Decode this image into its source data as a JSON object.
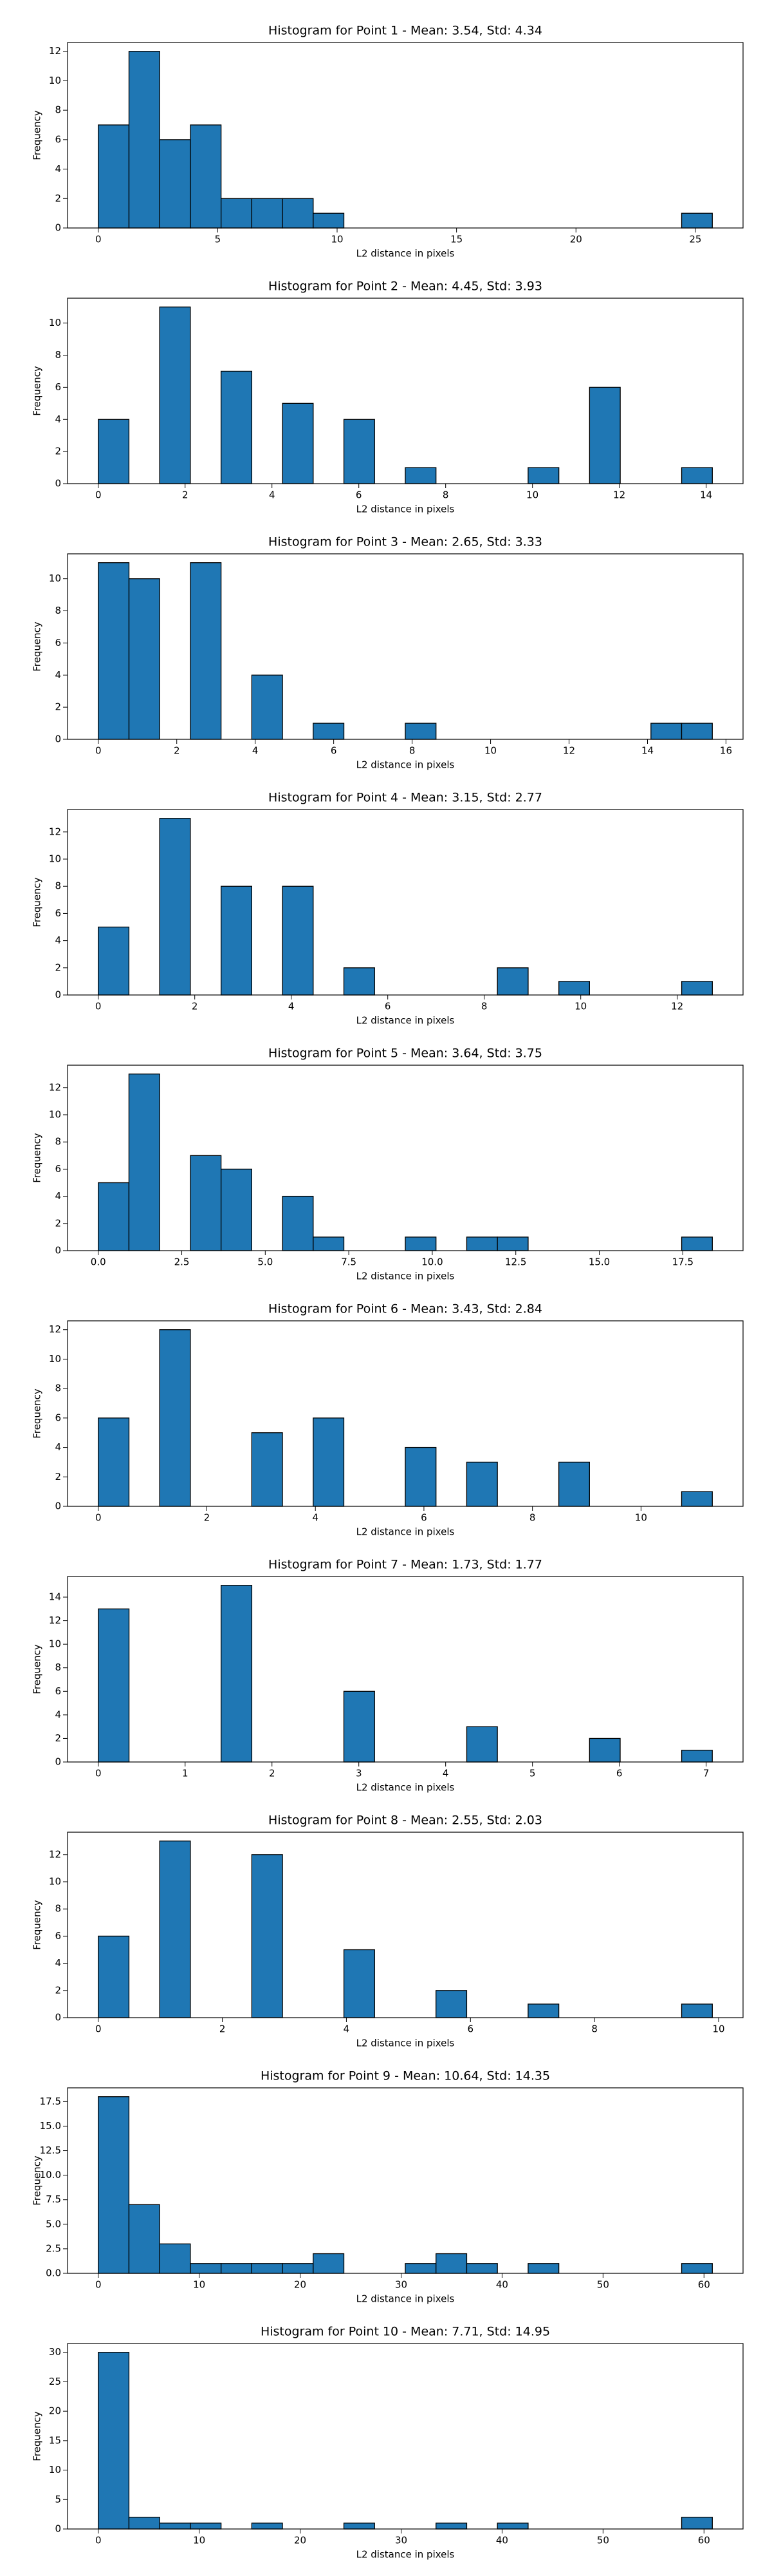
{
  "chart_data": [
    {
      "type": "histogram",
      "title": "Histogram for Point 1 - Mean: 3.54, Std: 4.34",
      "xlabel": "L2 distance in pixels",
      "ylabel": "Frequency",
      "color": "#1f77b4",
      "edgecolor": "#000000",
      "bins": [
        0,
        1.286,
        2.571,
        3.857,
        5.142,
        6.428,
        7.713,
        8.999,
        10.284,
        11.57,
        12.855,
        14.141,
        15.426,
        16.712,
        17.997,
        19.283,
        20.568,
        21.854,
        23.139,
        24.425,
        25.71
      ],
      "values": [
        7,
        12,
        6,
        7,
        2,
        2,
        2,
        1,
        0,
        0,
        0,
        0,
        0,
        0,
        0,
        0,
        0,
        0,
        0,
        1
      ],
      "xlim": [
        -1.286,
        26.996
      ],
      "xticks": [
        0,
        5,
        10,
        15,
        20,
        25
      ],
      "ylim": [
        0,
        12.6
      ],
      "yticks": [
        0,
        2,
        4,
        6,
        8,
        10,
        12
      ]
    },
    {
      "type": "histogram",
      "title": "Histogram for Point 2 - Mean: 4.45, Std: 3.93",
      "xlabel": "L2 distance in pixels",
      "ylabel": "Frequency",
      "color": "#1f77b4",
      "edgecolor": "#000000",
      "bins": [
        0,
        0.707,
        1.414,
        2.121,
        2.828,
        3.536,
        4.243,
        4.95,
        5.657,
        6.364,
        7.071,
        7.778,
        8.485,
        9.192,
        9.899,
        10.607,
        11.314,
        12.021,
        12.728,
        13.435,
        14.142
      ],
      "values": [
        4,
        0,
        11,
        0,
        7,
        0,
        5,
        0,
        4,
        0,
        1,
        0,
        0,
        0,
        1,
        0,
        6,
        0,
        0,
        1
      ],
      "xlim": [
        -0.707,
        14.849
      ],
      "xticks": [
        0,
        2,
        4,
        6,
        8,
        10,
        12,
        14
      ],
      "ylim": [
        0,
        11.55
      ],
      "yticks": [
        0,
        2,
        4,
        6,
        8,
        10
      ]
    },
    {
      "type": "histogram",
      "title": "Histogram for Point 3 - Mean: 2.65, Std: 3.33",
      "xlabel": "L2 distance in pixels",
      "ylabel": "Frequency",
      "color": "#1f77b4",
      "edgecolor": "#000000",
      "bins": [
        0,
        0.783,
        1.565,
        2.348,
        3.13,
        3.913,
        4.696,
        5.478,
        6.261,
        7.043,
        7.826,
        8.609,
        9.391,
        10.174,
        10.956,
        11.739,
        12.522,
        13.304,
        14.087,
        14.869,
        15.652
      ],
      "values": [
        11,
        10,
        0,
        11,
        0,
        4,
        0,
        1,
        0,
        0,
        1,
        0,
        0,
        0,
        0,
        0,
        0,
        0,
        1,
        1
      ],
      "xlim": [
        -0.783,
        16.435
      ],
      "xticks": [
        0,
        2,
        4,
        6,
        8,
        10,
        12,
        14,
        16
      ],
      "ylim": [
        0,
        11.55
      ],
      "yticks": [
        0,
        2,
        4,
        6,
        8,
        10
      ]
    },
    {
      "type": "histogram",
      "title": "Histogram for Point 4 - Mean: 3.15, Std: 2.77",
      "xlabel": "L2 distance in pixels",
      "ylabel": "Frequency",
      "color": "#1f77b4",
      "edgecolor": "#000000",
      "bins": [
        0,
        0.636,
        1.273,
        1.909,
        2.546,
        3.182,
        3.818,
        4.455,
        5.091,
        5.728,
        6.364,
        7,
        7.637,
        8.273,
        8.91,
        9.546,
        10.182,
        10.819,
        11.455,
        12.092,
        12.728
      ],
      "values": [
        5,
        0,
        13,
        0,
        8,
        0,
        8,
        0,
        2,
        0,
        0,
        0,
        0,
        2,
        0,
        1,
        0,
        0,
        0,
        1
      ],
      "xlim": [
        -0.636,
        13.364
      ],
      "xticks": [
        0,
        2,
        4,
        6,
        8,
        10,
        12
      ],
      "ylim": [
        0,
        13.65
      ],
      "yticks": [
        0,
        2,
        4,
        6,
        8,
        10,
        12
      ]
    },
    {
      "type": "histogram",
      "title": "Histogram for Point 5 - Mean: 3.64, Std: 3.75",
      "xlabel": "L2 distance in pixels",
      "ylabel": "Frequency",
      "color": "#1f77b4",
      "edgecolor": "#000000",
      "bins": [
        0,
        0.919,
        1.839,
        2.758,
        3.677,
        4.596,
        5.516,
        6.435,
        7.354,
        8.273,
        9.193,
        10.112,
        11.031,
        11.95,
        12.87,
        13.789,
        14.708,
        15.627,
        16.547,
        17.466,
        18.385
      ],
      "values": [
        5,
        13,
        0,
        7,
        6,
        0,
        4,
        1,
        0,
        0,
        1,
        0,
        1,
        1,
        0,
        0,
        0,
        0,
        0,
        1
      ],
      "xlim": [
        -0.919,
        19.304
      ],
      "xticks": [
        {
          "value": 0,
          "label": "0.0"
        },
        2.5,
        {
          "value": 5,
          "label": "5.0"
        },
        7.5,
        {
          "value": 10,
          "label": "10.0"
        },
        12.5,
        {
          "value": 15,
          "label": "15.0"
        },
        17.5
      ],
      "ylim": [
        0,
        13.65
      ],
      "yticks": [
        0,
        2,
        4,
        6,
        8,
        10,
        12
      ]
    },
    {
      "type": "histogram",
      "title": "Histogram for Point 6 - Mean: 3.43, Std: 2.84",
      "xlabel": "L2 distance in pixels",
      "ylabel": "Frequency",
      "color": "#1f77b4",
      "edgecolor": "#000000",
      "bins": [
        0,
        0.566,
        1.131,
        1.697,
        2.263,
        2.828,
        3.394,
        3.96,
        4.525,
        5.091,
        5.657,
        6.223,
        6.788,
        7.354,
        7.92,
        8.485,
        9.051,
        9.617,
        10.182,
        10.748,
        11.314
      ],
      "values": [
        6,
        0,
        12,
        0,
        0,
        5,
        0,
        6,
        0,
        0,
        4,
        0,
        3,
        0,
        0,
        3,
        0,
        0,
        0,
        1
      ],
      "xlim": [
        -0.566,
        11.88
      ],
      "xticks": [
        0,
        2,
        4,
        6,
        8,
        10
      ],
      "ylim": [
        0,
        12.6
      ],
      "yticks": [
        0,
        2,
        4,
        6,
        8,
        10,
        12
      ]
    },
    {
      "type": "histogram",
      "title": "Histogram for Point 7 - Mean: 1.73, Std: 1.77",
      "xlabel": "L2 distance in pixels",
      "ylabel": "Frequency",
      "color": "#1f77b4",
      "edgecolor": "#000000",
      "bins": [
        0,
        0.354,
        0.707,
        1.061,
        1.414,
        1.768,
        2.121,
        2.475,
        2.828,
        3.182,
        3.536,
        3.889,
        4.243,
        4.596,
        4.95,
        5.303,
        5.657,
        6.01,
        6.364,
        6.718,
        7.071
      ],
      "values": [
        13,
        0,
        0,
        0,
        15,
        0,
        0,
        0,
        6,
        0,
        0,
        0,
        3,
        0,
        0,
        0,
        2,
        0,
        0,
        1
      ],
      "xlim": [
        -0.354,
        7.425
      ],
      "xticks": [
        0,
        1,
        2,
        3,
        4,
        5,
        6,
        7
      ],
      "ylim": [
        0,
        15.75
      ],
      "yticks": [
        0,
        2,
        4,
        6,
        8,
        10,
        12,
        14
      ]
    },
    {
      "type": "histogram",
      "title": "Histogram for Point 8 - Mean: 2.55, Std: 2.03",
      "xlabel": "L2 distance in pixels",
      "ylabel": "Frequency",
      "color": "#1f77b4",
      "edgecolor": "#000000",
      "bins": [
        0,
        0.495,
        0.99,
        1.485,
        1.98,
        2.475,
        2.97,
        3.465,
        3.96,
        4.455,
        4.95,
        5.444,
        5.939,
        6.434,
        6.929,
        7.424,
        7.919,
        8.414,
        8.909,
        9.404,
        9.899
      ],
      "values": [
        6,
        0,
        13,
        0,
        0,
        12,
        0,
        0,
        5,
        0,
        0,
        2,
        0,
        0,
        1,
        0,
        0,
        0,
        0,
        1
      ],
      "xlim": [
        -0.495,
        10.394
      ],
      "xticks": [
        0,
        2,
        4,
        6,
        8,
        10
      ],
      "ylim": [
        0,
        13.65
      ],
      "yticks": [
        0,
        2,
        4,
        6,
        8,
        10,
        12
      ]
    },
    {
      "type": "histogram",
      "title": "Histogram for Point 9 - Mean: 10.64, Std: 14.35",
      "xlabel": "L2 distance in pixels",
      "ylabel": "Frequency",
      "color": "#1f77b4",
      "edgecolor": "#000000",
      "bins": [
        0,
        3.041,
        6.083,
        9.124,
        12.166,
        15.207,
        18.248,
        21.29,
        24.331,
        27.373,
        30.414,
        33.455,
        36.497,
        39.538,
        42.58,
        45.621,
        48.662,
        51.704,
        54.745,
        57.787,
        60.828
      ],
      "values": [
        18,
        7,
        3,
        1,
        1,
        1,
        1,
        2,
        0,
        0,
        1,
        2,
        1,
        0,
        1,
        0,
        0,
        0,
        0,
        1
      ],
      "xlim": [
        -3.041,
        63.869
      ],
      "xticks": [
        0,
        10,
        20,
        30,
        40,
        50,
        60
      ],
      "ylim": [
        0,
        18.9
      ],
      "yticks": [
        {
          "value": 0,
          "label": "0.0"
        },
        2.5,
        {
          "value": 5,
          "label": "5.0"
        },
        7.5,
        {
          "value": 10,
          "label": "10.0"
        },
        12.5,
        {
          "value": 15,
          "label": "15.0"
        },
        17.5
      ]
    },
    {
      "type": "histogram",
      "title": "Histogram for Point 10 - Mean: 7.71, Std: 14.95",
      "xlabel": "L2 distance in pixels",
      "ylabel": "Frequency",
      "color": "#1f77b4",
      "edgecolor": "#000000",
      "bins": [
        0,
        3.041,
        6.083,
        9.124,
        12.166,
        15.207,
        18.248,
        21.29,
        24.331,
        27.373,
        30.414,
        33.455,
        36.497,
        39.538,
        42.58,
        45.621,
        48.662,
        51.704,
        54.745,
        57.787,
        60.828
      ],
      "values": [
        30,
        2,
        1,
        1,
        0,
        1,
        0,
        0,
        1,
        0,
        0,
        1,
        0,
        1,
        0,
        0,
        0,
        0,
        0,
        2
      ],
      "xlim": [
        -3.041,
        63.869
      ],
      "xticks": [
        0,
        10,
        20,
        30,
        40,
        50,
        60
      ],
      "ylim": [
        0,
        31.5
      ],
      "yticks": [
        0,
        5,
        10,
        15,
        20,
        25,
        30
      ]
    }
  ]
}
